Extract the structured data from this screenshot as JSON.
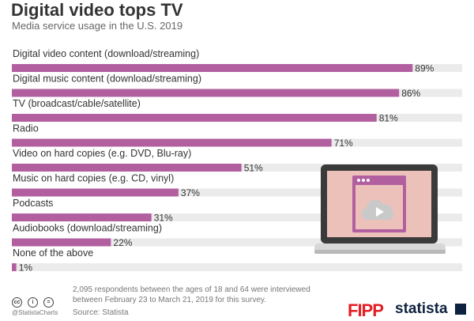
{
  "header": {
    "title": "Digital video tops TV",
    "subtitle": "Media service usage in the U.S. 2019"
  },
  "chart_data": {
    "type": "bar",
    "orientation": "horizontal",
    "title": "Digital video tops TV",
    "subtitle": "Media service usage in the U.S. 2019",
    "categories": [
      "Digital video content (download/streaming)",
      "Digital music content (download/streaming)",
      "TV (broadcast/cable/satellite)",
      "Radio",
      "Video on hard copies (e.g. DVD, Blu-ray)",
      "Music on hard copies (e.g. CD, vinyl)",
      "Podcasts",
      "Audiobooks (download/streaming)",
      "None of the above"
    ],
    "values": [
      89,
      86,
      81,
      71,
      51,
      37,
      31,
      22,
      1
    ],
    "value_labels": [
      "89%",
      "86%",
      "81%",
      "71%",
      "51%",
      "37%",
      "31%",
      "22%",
      "1%"
    ],
    "xlim": [
      0,
      100
    ],
    "xlabel": "",
    "ylabel": "",
    "grid": false,
    "legend": "none",
    "colors": {
      "bar": "#b25f9f",
      "track": "#ebebeb"
    }
  },
  "footer": {
    "note": "2,095 respondents between the ages of 18 and 64 were interviewed between February 23 to March 21, 2019 for this survey.",
    "source": "Source: Statista",
    "handle": "@StatistaCharts",
    "logos": [
      "FIPP",
      "statista"
    ],
    "license_icons": [
      "cc",
      "i",
      "="
    ]
  },
  "illustration": {
    "icon": "laptop-cloud-video-icon",
    "colors": {
      "frame": "#3a3a3a",
      "screen": "#ecc1ba",
      "window": "#b25f9f",
      "cloud": "#c9c9c9",
      "base": "#d7d7d7"
    }
  }
}
